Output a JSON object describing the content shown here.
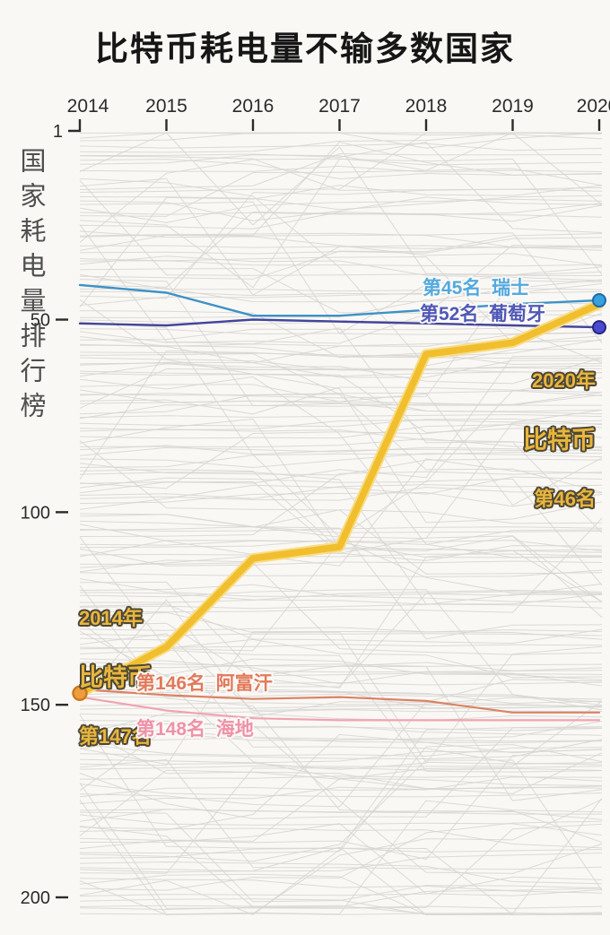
{
  "title": "比特币耗电量不输多数国家",
  "y_axis_title": "国家耗电量排行榜",
  "chart_data": {
    "type": "line",
    "subtype": "bump-rank-chart",
    "title": "比特币耗电量不输多数国家",
    "ylabel": "国家耗电量排行榜",
    "x": [
      2014,
      2015,
      2016,
      2017,
      2018,
      2019,
      2020
    ],
    "x_axis_position": "top",
    "y_ticks": [
      1,
      50,
      100,
      150,
      200
    ],
    "ylim": [
      1,
      205
    ],
    "y_inverted": true,
    "grid": false,
    "legend_position": "none",
    "background_countries": {
      "count": 200,
      "color": "#d7d6d3"
    },
    "series": [
      {
        "name": "比特币",
        "name_en": "Bitcoin",
        "z": 5,
        "width": 7.5,
        "color": "#f1be2e",
        "halo": "#f8dd85",
        "values": [
          147,
          135,
          112,
          109,
          59,
          56,
          46
        ],
        "start_dot": {
          "fill": "#ef9d3c",
          "stroke": "#c97a20"
        }
      },
      {
        "name": "瑞士",
        "name_en": "Switzerland",
        "z": 4,
        "width": 2.4,
        "color": "#3c92c8",
        "values": [
          41,
          43,
          49,
          49,
          47.5,
          46,
          45
        ],
        "end_dot": {
          "fill": "#37a2dc",
          "stroke": "#1d6aa8"
        }
      },
      {
        "name": "葡萄牙",
        "name_en": "Portugal",
        "z": 3,
        "width": 2.4,
        "color": "#43459c",
        "values": [
          51,
          51.5,
          50,
          50.5,
          51,
          51.5,
          52
        ],
        "end_dot": {
          "fill": "#4a4ad0",
          "stroke": "#26267e"
        }
      },
      {
        "name": "阿富汗",
        "name_en": "Afghanistan",
        "z": 2,
        "width": 2.2,
        "color": "#db8266",
        "values": [
          146,
          147.5,
          148.5,
          148,
          149,
          152,
          152
        ]
      },
      {
        "name": "海地",
        "name_en": "Haiti",
        "z": 1,
        "width": 2.2,
        "color": "#f0a3b1",
        "values": [
          148,
          151.5,
          153.5,
          154,
          154,
          154,
          154
        ]
      }
    ]
  },
  "annotations": {
    "switzerland": {
      "text": "第45名  瑞士",
      "color": "#54a9de"
    },
    "portugal": {
      "text": "第52名  葡萄牙",
      "color": "#5058b6"
    },
    "bitcoin_2020": {
      "line1": "2020年",
      "line2": "比特币",
      "line3": "第46名"
    },
    "bitcoin_2014": {
      "line1": "2014年",
      "line2": "比特币",
      "line3": "第147名"
    },
    "afghanistan": {
      "text": "第146名  阿富汗",
      "color": "#e2795b"
    },
    "haiti": {
      "text": "第148名  海地",
      "color": "#ef91a7"
    }
  }
}
